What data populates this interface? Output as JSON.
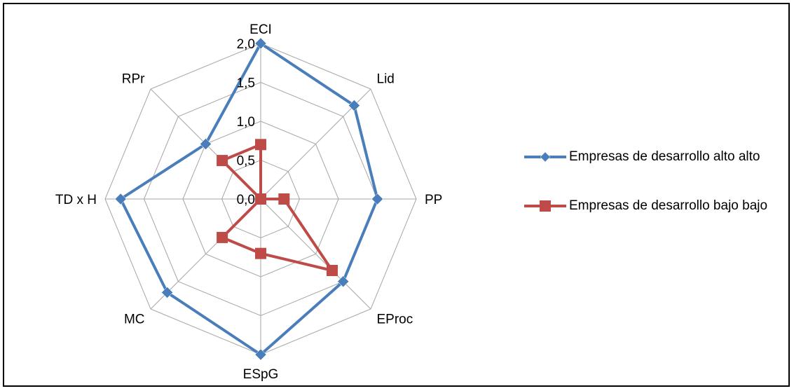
{
  "chart_data": {
    "type": "radar",
    "axes": [
      "ECI",
      "Lid",
      "PP",
      "EProc",
      "ESpG",
      "MC",
      "TD x H",
      "RPr"
    ],
    "ticks": [
      "0,0",
      "0,5",
      "1,0",
      "1,5",
      "2,0"
    ],
    "rlim": [
      0,
      2.0
    ],
    "grid": true,
    "legend_position": "right",
    "series": [
      {
        "name": "Empresas de desarrollo alto alto",
        "color": "#4a7ebb",
        "marker": "diamond",
        "values": [
          2.0,
          1.7,
          1.5,
          1.5,
          2.0,
          1.7,
          1.8,
          1.0
        ]
      },
      {
        "name": "Empresas de desarrollo bajo bajo",
        "color": "#be4b48",
        "marker": "square",
        "values": [
          0.7,
          0.0,
          0.3,
          1.3,
          0.7,
          0.7,
          0.0,
          0.7
        ]
      }
    ]
  }
}
